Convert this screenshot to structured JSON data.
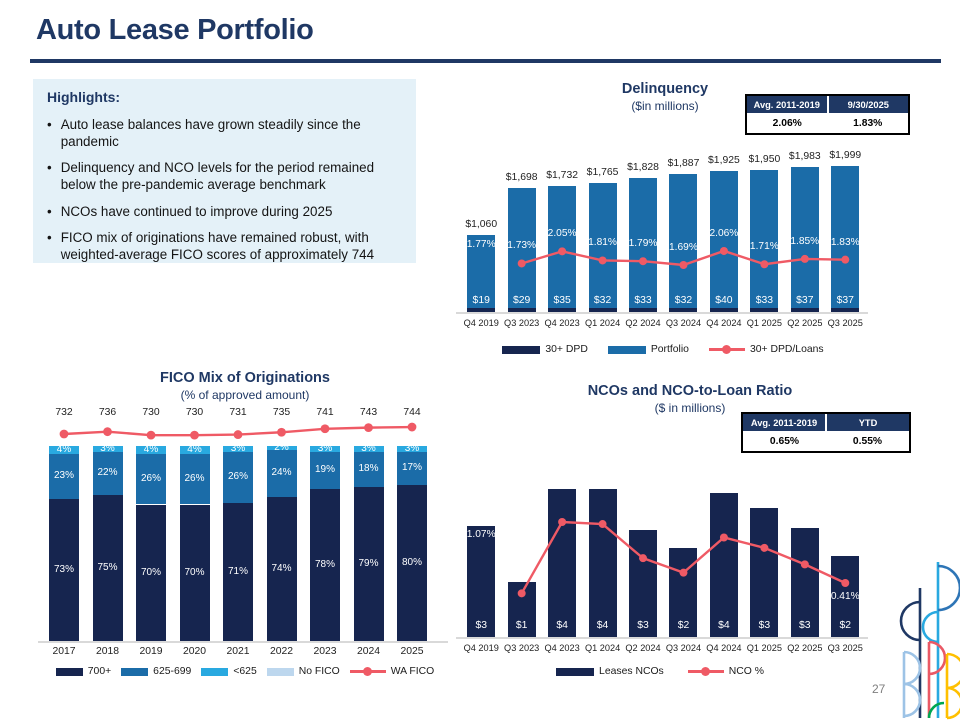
{
  "slide": {
    "title": "Auto Lease Portfolio",
    "page_number": "27"
  },
  "highlights": {
    "heading": "Highlights:",
    "bullets": [
      "Auto lease balances have grown steadily since the pandemic",
      "Delinquency and NCO levels for the period remained below the pre-pandemic average benchmark",
      "NCOs have continued to improve during 2025",
      "FICO mix of originations have remained robust, with weighted-average FICO scores of approximately 744"
    ]
  },
  "colors": {
    "navy": "#1F3864",
    "dark_navy_bar": "#16254F",
    "blue_bar": "#1B6CA8",
    "cyan_bar": "#29A9E0",
    "light_blue_bar": "#BDD7EE",
    "line_red": "#EF5A65",
    "highlight_bg": "#E4F1F8"
  },
  "chart_data": [
    {
      "id": "delinquency",
      "type": "bar+line",
      "title": "Delinquency",
      "subtitle": "($in millions)",
      "categories": [
        "Q4 2019",
        "Q3 2023",
        "Q4 2023",
        "Q1 2024",
        "Q2 2024",
        "Q3 2024",
        "Q4 2024",
        "Q1 2025",
        "Q2 2025",
        "Q3 2025"
      ],
      "series": [
        {
          "name": "30+ DPD",
          "type": "bar",
          "labels": [
            "$19",
            "$29",
            "$35",
            "$32",
            "$33",
            "$32",
            "$40",
            "$33",
            "$37",
            "$37"
          ],
          "values": [
            19,
            29,
            35,
            32,
            33,
            32,
            40,
            33,
            37,
            37
          ]
        },
        {
          "name": "Portfolio",
          "type": "bar",
          "labels": [
            "$1,060",
            "$1,698",
            "$1,732",
            "$1,765",
            "$1,828",
            "$1,887",
            "$1,925",
            "$1,950",
            "$1,983",
            "$1,999"
          ],
          "values": [
            1060,
            1698,
            1732,
            1765,
            1828,
            1887,
            1925,
            1950,
            1983,
            1999
          ]
        },
        {
          "name": "30+ DPD/Loans",
          "type": "line",
          "labels": [
            "1.77%",
            "1.73%",
            "2.05%",
            "1.81%",
            "1.79%",
            "1.69%",
            "2.06%",
            "1.71%",
            "1.85%",
            "1.83%"
          ],
          "values": [
            1.77,
            1.73,
            2.05,
            1.81,
            1.79,
            1.69,
            2.06,
            1.71,
            1.85,
            1.83
          ],
          "line_starts_at_index": 1
        }
      ],
      "legend": [
        "30+ DPD",
        "Portfolio",
        "30+ DPD/Loans"
      ],
      "stat_table": {
        "headers": [
          "Avg. 2011-2019",
          "9/30/2025"
        ],
        "values": [
          "2.06%",
          "1.83%"
        ]
      },
      "ylim": [
        0,
        2100
      ]
    },
    {
      "id": "fico_mix",
      "type": "stacked-bar+line",
      "title": "FICO Mix of Originations",
      "subtitle": "(% of approved amount)",
      "categories": [
        "2017",
        "2018",
        "2019",
        "2020",
        "2021",
        "2022",
        "2023",
        "2024",
        "2025"
      ],
      "series": [
        {
          "name": "700+",
          "type": "bar",
          "values": [
            73,
            75,
            70,
            70,
            71,
            74,
            78,
            79,
            80
          ]
        },
        {
          "name": "625-699",
          "type": "bar",
          "values": [
            23,
            22,
            26,
            26,
            26,
            24,
            19,
            18,
            17
          ]
        },
        {
          "name": "<625",
          "type": "bar",
          "values": [
            4,
            3,
            4,
            4,
            3,
            2,
            3,
            3,
            3
          ]
        },
        {
          "name": "No FICO",
          "type": "bar",
          "values": [
            0,
            0,
            0,
            0,
            0,
            0,
            0,
            0,
            0
          ]
        },
        {
          "name": "WA FICO",
          "type": "line",
          "values": [
            732,
            736,
            730,
            730,
            731,
            735,
            741,
            743,
            744
          ]
        }
      ],
      "legend": [
        "700+",
        "625-699",
        "<625",
        "No FICO",
        "WA FICO"
      ],
      "ylim": [
        0,
        100
      ]
    },
    {
      "id": "nco",
      "type": "bar+line",
      "title": "NCOs and NCO-to-Loan Ratio",
      "subtitle": "($ in millions)",
      "categories": [
        "Q4 2019",
        "Q3 2023",
        "Q4 2023",
        "Q1 2024",
        "Q2 2024",
        "Q3 2024",
        "Q4 2024",
        "Q1 2025",
        "Q2 2025",
        "Q3 2025"
      ],
      "series": [
        {
          "name": "Leases NCOs",
          "type": "bar",
          "labels": [
            "$3",
            "$1",
            "$4",
            "$4",
            "$3",
            "$2",
            "$4",
            "$3",
            "$3",
            "$2"
          ],
          "values": [
            3.0,
            1.5,
            4.0,
            4.0,
            2.9,
            2.4,
            3.9,
            3.5,
            2.95,
            2.2
          ]
        },
        {
          "name": "NCO %",
          "type": "line",
          "values": [
            1.07,
            0.31,
            1.0,
            0.98,
            0.65,
            0.51,
            0.85,
            0.75,
            0.59,
            0.41
          ],
          "point_labels": {
            "0": "1.07%",
            "9": "0.41%"
          },
          "line_starts_at_index": 1
        }
      ],
      "legend": [
        "Leases NCOs",
        "NCO %"
      ],
      "stat_table": {
        "headers": [
          "Avg. 2011-2019",
          "YTD"
        ],
        "values": [
          "0.65%",
          "0.55%"
        ]
      }
    }
  ]
}
